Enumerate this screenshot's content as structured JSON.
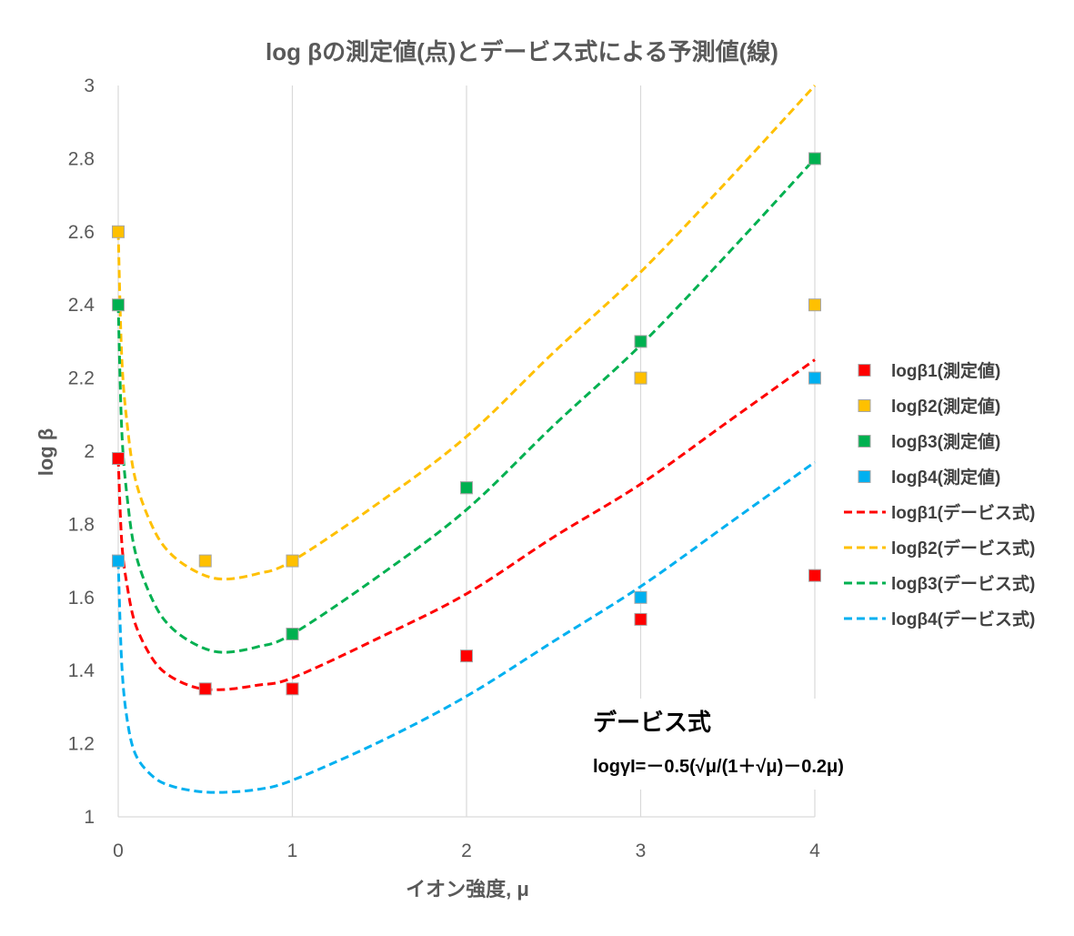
{
  "chart_data": {
    "type": "scatter",
    "title": "log βの測定値(点)とデービス式による予測値(線)",
    "xlabel": "イオン強度, μ",
    "ylabel": "log β",
    "xlim": [
      0,
      4
    ],
    "ylim": [
      1,
      3
    ],
    "xticks": [
      0,
      1,
      2,
      3,
      4
    ],
    "yticks": [
      1,
      1.2,
      1.4,
      1.6,
      1.8,
      2,
      2.2,
      2.4,
      2.6,
      2.8,
      3
    ],
    "grid": "vertical",
    "legend_position": "right",
    "x": [
      0,
      0.5,
      1,
      2,
      3,
      4
    ],
    "series": [
      {
        "name": "logβ1(測定値)",
        "kind": "markers",
        "color": "#ff0000",
        "values": [
          1.98,
          1.35,
          1.35,
          1.44,
          1.54,
          1.66
        ]
      },
      {
        "name": "logβ2(測定値)",
        "kind": "markers",
        "color": "#ffc000",
        "values": [
          2.6,
          1.7,
          1.7,
          1.9,
          2.2,
          2.4
        ]
      },
      {
        "name": "logβ3(測定値)",
        "kind": "markers",
        "color": "#00b050",
        "values": [
          2.4,
          null,
          1.5,
          1.9,
          2.3,
          2.8
        ]
      },
      {
        "name": "logβ4(測定値)",
        "kind": "markers",
        "color": "#00b0f0",
        "values": [
          1.7,
          null,
          null,
          null,
          1.6,
          2.2
        ]
      }
    ],
    "fit_lines": [
      {
        "name": "logβ1(デービス式)",
        "kind": "dashed-line",
        "color": "#ff0000",
        "x": [
          0,
          0.02,
          0.05,
          0.1,
          0.2,
          0.3,
          0.45,
          0.6,
          0.8,
          1,
          1.5,
          2,
          2.5,
          3,
          3.5,
          4
        ],
        "values": [
          1.98,
          1.753,
          1.636,
          1.525,
          1.43,
          1.384,
          1.353,
          1.348,
          1.36,
          1.38,
          1.49,
          1.61,
          1.765,
          1.91,
          2.08,
          2.25
        ]
      },
      {
        "name": "logβ2(デービス式)",
        "kind": "dashed-line",
        "color": "#ffc000",
        "x": [
          0,
          0.02,
          0.05,
          0.1,
          0.2,
          0.3,
          0.45,
          0.6,
          0.8,
          1,
          1.5,
          2,
          2.5,
          3,
          3.5,
          4
        ],
        "values": [
          2.6,
          2.26,
          2.08,
          1.92,
          1.79,
          1.72,
          1.67,
          1.65,
          1.665,
          1.7,
          1.86,
          2.04,
          2.27,
          2.49,
          2.74,
          3.0
        ]
      },
      {
        "name": "logβ3(デービス式)",
        "kind": "dashed-line",
        "color": "#00b050",
        "x": [
          0,
          0.02,
          0.05,
          0.1,
          0.2,
          0.3,
          0.45,
          0.6,
          0.8,
          1,
          1.5,
          2,
          2.5,
          3,
          3.5,
          4
        ],
        "values": [
          2.4,
          2.06,
          1.88,
          1.72,
          1.59,
          1.52,
          1.47,
          1.45,
          1.465,
          1.5,
          1.66,
          1.84,
          2.07,
          2.29,
          2.54,
          2.8
        ]
      },
      {
        "name": "logβ4(デービス式)",
        "kind": "dashed-line",
        "color": "#00b0f0",
        "x": [
          0,
          0.02,
          0.05,
          0.1,
          0.2,
          0.3,
          0.45,
          0.6,
          0.8,
          1,
          1.5,
          2,
          2.5,
          3,
          3.5,
          4
        ],
        "values": [
          1.7,
          1.42,
          1.27,
          1.17,
          1.11,
          1.085,
          1.07,
          1.067,
          1.075,
          1.1,
          1.205,
          1.33,
          1.48,
          1.63,
          1.8,
          1.97
        ]
      }
    ],
    "annotation": {
      "title": "デービス式",
      "equation": "logγI=－0.5(√μ/(1＋√μ)－0.2μ)"
    }
  }
}
